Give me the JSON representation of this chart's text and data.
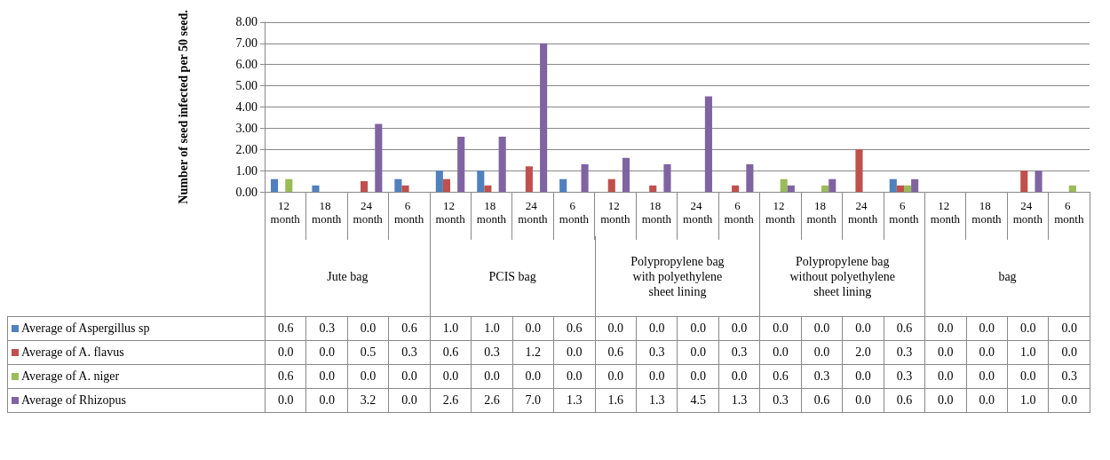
{
  "chart_data": {
    "type": "bar",
    "ylabel": "Number of seed infected per 50 seed.",
    "categories": [
      "12 month",
      "18 month",
      "24 month",
      "6 month",
      "12 month",
      "18 month",
      "24 month",
      "6 month",
      "12 month",
      "18 month",
      "24 month",
      "6 month",
      "12 month",
      "18 month",
      "24 month",
      "6 month",
      "12 month",
      "18 month",
      "24 month",
      "6 month"
    ],
    "annotations": [
      "Jute bag",
      "PCIS bag",
      "Polypropylene bag with polyethylene sheet lining",
      "Polypropylene bag without polyethylene sheet lining",
      "bag"
    ],
    "series": [
      {
        "name": "Average of Aspergillus sp",
        "color": "#4f81bd",
        "values": [
          0.6,
          0.3,
          0.0,
          0.6,
          1.0,
          1.0,
          0.0,
          0.6,
          0.0,
          0.0,
          0.0,
          0.0,
          0.0,
          0.0,
          0.0,
          0.6,
          0.0,
          0.0,
          0.0,
          0.0
        ],
        "value_labels": [
          "0.6",
          "0.3",
          "0.0",
          "0.6",
          "1.0",
          "1.0",
          "0.0",
          "0.6",
          "0.0",
          "0.0",
          "0.0",
          "0.0",
          "0.0",
          "0.0",
          "0.0",
          "0.6",
          "0.0",
          "0.0",
          "0.0",
          "0.0"
        ]
      },
      {
        "name": "Average of A. flavus",
        "color": "#c0504d",
        "values": [
          0.0,
          0.0,
          0.5,
          0.3,
          0.6,
          0.3,
          1.2,
          0.0,
          0.6,
          0.3,
          0.0,
          0.3,
          0.0,
          0.0,
          2.0,
          0.3,
          0.0,
          0.0,
          1.0,
          0.0
        ],
        "value_labels": [
          "0.0",
          "0.0",
          "0.5",
          "0.3",
          "0.6",
          "0.3",
          "1.2",
          "0.0",
          "0.6",
          "0.3",
          "0.0",
          "0.3",
          "0.0",
          "0.0",
          "2.0",
          "0.3",
          "0.0",
          "0.0",
          "1.0",
          "0.0"
        ]
      },
      {
        "name": "Average of A. niger",
        "color": "#9bbb59",
        "values": [
          0.6,
          0.0,
          0.0,
          0.0,
          0.0,
          0.0,
          0.0,
          0.0,
          0.0,
          0.0,
          0.0,
          0.0,
          0.6,
          0.3,
          0.0,
          0.3,
          0.0,
          0.0,
          0.0,
          0.3
        ],
        "value_labels": [
          "0.6",
          "0.0",
          "0.0",
          "0.0",
          "0.0",
          "0.0",
          "0.0",
          "0.0",
          "0.0",
          "0.0",
          "0.0",
          "0.0",
          "0.6",
          "0.3",
          "0.0",
          "0.3",
          "0.0",
          "0.0",
          "0.0",
          "0.3"
        ]
      },
      {
        "name": "Average of Rhizopus",
        "color": "#8064a2",
        "values": [
          0.0,
          0.0,
          3.2,
          0.0,
          2.6,
          2.6,
          7.0,
          1.3,
          1.6,
          1.3,
          4.5,
          1.3,
          0.3,
          0.6,
          0.0,
          0.6,
          0.0,
          0.0,
          1.0,
          0.0
        ],
        "value_labels": [
          "0.0",
          "0.0",
          "3.2",
          "0.0",
          "2.6",
          "2.6",
          "7.0",
          "1.3",
          "1.6",
          "1.3",
          "4.5",
          "1.3",
          "0.3",
          "0.6",
          "0.0",
          "0.6",
          "0.0",
          "0.0",
          "1.0",
          "0.0"
        ]
      }
    ],
    "ylim": [
      0,
      8
    ],
    "yticks": [
      {
        "value": 0,
        "label": "0.00"
      },
      {
        "value": 1,
        "label": "1.00"
      },
      {
        "value": 2,
        "label": "2.00"
      },
      {
        "value": 3,
        "label": "3.00"
      },
      {
        "value": 4,
        "label": "4.00"
      },
      {
        "value": 5,
        "label": "5.00"
      },
      {
        "value": 6,
        "label": "6.00"
      },
      {
        "value": 7,
        "label": "7.00"
      },
      {
        "value": 8,
        "label": "8.00"
      }
    ],
    "grid": "y",
    "legend": "bottom"
  }
}
